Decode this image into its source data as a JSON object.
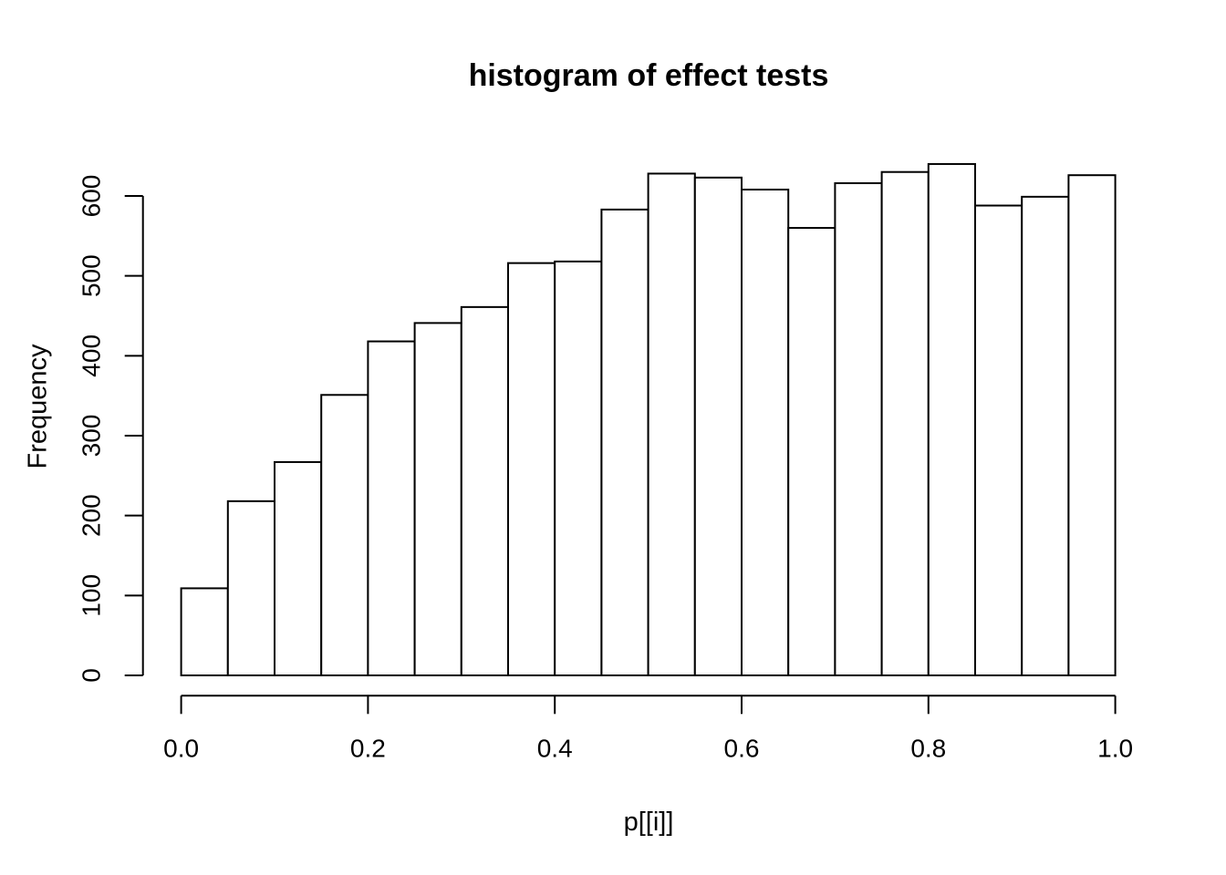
{
  "page": {
    "background": "#ffffff",
    "foreground": "#000000"
  },
  "chart_data": {
    "type": "bar",
    "subtype": "histogram",
    "title": "histogram of effect tests",
    "xlabel": "p[[i]]",
    "ylabel": "Frequency",
    "bin_edges": [
      0.0,
      0.05,
      0.1,
      0.15,
      0.2,
      0.25,
      0.3,
      0.35,
      0.4,
      0.45,
      0.5,
      0.55,
      0.6,
      0.65,
      0.7,
      0.75,
      0.8,
      0.85,
      0.9,
      0.95,
      1.0
    ],
    "values": [
      109,
      218,
      267,
      351,
      418,
      441,
      461,
      516,
      518,
      583,
      628,
      623,
      608,
      560,
      616,
      630,
      640,
      588,
      599,
      626
    ],
    "xlim": [
      0.0,
      1.0
    ],
    "ylim": [
      0,
      600
    ],
    "x_ticks": [
      {
        "value": 0.0,
        "label": "0.0"
      },
      {
        "value": 0.2,
        "label": "0.2"
      },
      {
        "value": 0.4,
        "label": "0.4"
      },
      {
        "value": 0.6,
        "label": "0.6"
      },
      {
        "value": 0.8,
        "label": "0.8"
      },
      {
        "value": 1.0,
        "label": "1.0"
      }
    ],
    "y_ticks": [
      {
        "value": 0,
        "label": "0"
      },
      {
        "value": 100,
        "label": "100"
      },
      {
        "value": 200,
        "label": "200"
      },
      {
        "value": 300,
        "label": "300"
      },
      {
        "value": 400,
        "label": "400"
      },
      {
        "value": 500,
        "label": "500"
      },
      {
        "value": 600,
        "label": "600"
      }
    ],
    "grid": false,
    "legend": null,
    "bar_fill": "#ffffff",
    "bar_stroke": "#000000",
    "axis_color": "#000000",
    "background": "#ffffff"
  }
}
